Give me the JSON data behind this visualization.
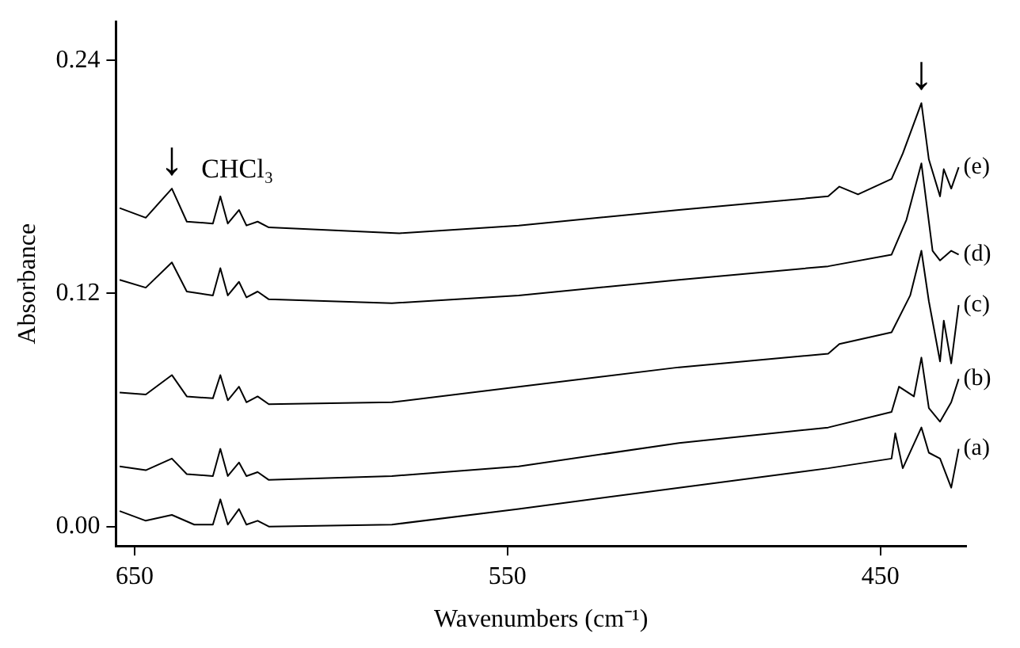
{
  "chart_data": {
    "type": "line",
    "xlabel": "Wavenumbers (cm⁻¹)",
    "ylabel": "Absorbance",
    "xlim": [
      655,
      427
    ],
    "ylim": [
      -0.01,
      0.26
    ],
    "xticks": [
      650,
      550,
      450
    ],
    "yticks": [
      {
        "value": 0,
        "label": "0.00"
      },
      {
        "value": 0.12,
        "label": "0.12"
      },
      {
        "value": 0.24,
        "label": "0.24"
      }
    ],
    "grid": false,
    "legend": false,
    "marker": "none",
    "line_style": "solid",
    "annotations": [
      {
        "text": "CHCl₃",
        "x": 627,
        "y": 0.17
      },
      {
        "text": "↓",
        "x": 640,
        "y": 0.174
      },
      {
        "text": "↓",
        "x": 439,
        "y": 0.218
      }
    ],
    "series": [
      {
        "name": "(a)",
        "color": "#000000",
        "x": [
          654,
          647,
          640,
          634,
          629,
          627,
          625,
          622,
          620,
          617,
          614,
          581,
          547,
          504,
          464,
          447,
          446,
          444,
          439,
          437,
          434,
          431,
          429
        ],
        "values": [
          0.008,
          0.003,
          0.006,
          0.001,
          0.001,
          0.014,
          0.001,
          0.009,
          0.001,
          0.003,
          0.0,
          0.001,
          0.009,
          0.02,
          0.03,
          0.035,
          0.048,
          0.03,
          0.051,
          0.038,
          0.035,
          0.02,
          0.04
        ]
      },
      {
        "name": "(b)",
        "color": "#000000",
        "x": [
          654,
          647,
          640,
          636,
          629,
          627,
          625,
          622,
          620,
          617,
          614,
          581,
          547,
          504,
          464,
          447,
          445,
          441,
          439,
          437,
          434,
          431,
          429
        ],
        "values": [
          0.031,
          0.029,
          0.035,
          0.027,
          0.026,
          0.04,
          0.026,
          0.033,
          0.026,
          0.028,
          0.024,
          0.026,
          0.031,
          0.043,
          0.051,
          0.059,
          0.072,
          0.067,
          0.087,
          0.061,
          0.054,
          0.064,
          0.076
        ]
      },
      {
        "name": "(c)",
        "color": "#000000",
        "x": [
          654,
          647,
          640,
          636,
          629,
          627,
          625,
          622,
          620,
          617,
          614,
          581,
          547,
          504,
          464,
          461,
          447,
          442,
          439,
          437,
          434,
          433,
          431,
          429
        ],
        "values": [
          0.069,
          0.068,
          0.078,
          0.067,
          0.066,
          0.078,
          0.065,
          0.072,
          0.064,
          0.067,
          0.063,
          0.064,
          0.072,
          0.082,
          0.089,
          0.094,
          0.1,
          0.119,
          0.142,
          0.116,
          0.085,
          0.106,
          0.084,
          0.114
        ]
      },
      {
        "name": "(d)",
        "color": "#000000",
        "x": [
          654,
          647,
          640,
          636,
          629,
          627,
          625,
          622,
          620,
          617,
          614,
          581,
          547,
          504,
          464,
          447,
          443,
          439,
          436,
          434,
          431,
          429
        ],
        "values": [
          0.127,
          0.123,
          0.136,
          0.121,
          0.119,
          0.133,
          0.119,
          0.126,
          0.118,
          0.121,
          0.117,
          0.115,
          0.119,
          0.127,
          0.134,
          0.14,
          0.158,
          0.187,
          0.142,
          0.137,
          0.142,
          0.14
        ]
      },
      {
        "name": "(e)",
        "color": "#000000",
        "x": [
          654,
          647,
          640,
          636,
          629,
          627,
          625,
          622,
          620,
          617,
          614,
          579,
          547,
          504,
          464,
          461,
          456,
          447,
          444,
          439,
          437,
          434,
          433,
          431,
          429
        ],
        "values": [
          0.164,
          0.159,
          0.174,
          0.157,
          0.156,
          0.17,
          0.156,
          0.163,
          0.155,
          0.157,
          0.154,
          0.151,
          0.155,
          0.163,
          0.17,
          0.175,
          0.171,
          0.179,
          0.192,
          0.218,
          0.189,
          0.17,
          0.184,
          0.174,
          0.185
        ]
      }
    ]
  }
}
